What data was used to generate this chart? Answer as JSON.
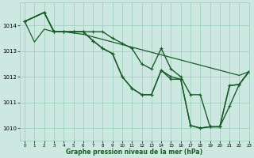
{
  "background_color": "#cce8e0",
  "plot_bg_color": "#cce8e0",
  "grid_color": "#99ccbb",
  "line_color": "#1a5c2a",
  "title": "Graphe pression niveau de la mer (hPa)",
  "ylim": [
    1009.5,
    1014.9
  ],
  "xlim": [
    -0.5,
    23
  ],
  "yticks": [
    1010,
    1011,
    1012,
    1013,
    1014
  ],
  "xticks": [
    0,
    1,
    2,
    3,
    4,
    5,
    6,
    7,
    8,
    9,
    10,
    11,
    12,
    13,
    14,
    15,
    16,
    17,
    18,
    19,
    20,
    21,
    22,
    23
  ],
  "series": [
    {
      "x": [
        0,
        1,
        2,
        3,
        4,
        5,
        6,
        7,
        8,
        9,
        10,
        11,
        12,
        13,
        14,
        15,
        16,
        17,
        18,
        19,
        20,
        21,
        22,
        23
      ],
      "y": [
        1014.15,
        1013.35,
        1013.85,
        1013.75,
        1013.75,
        1013.7,
        1013.65,
        1013.55,
        1013.45,
        1013.35,
        1013.25,
        1013.15,
        1013.05,
        1012.95,
        1012.85,
        1012.75,
        1012.65,
        1012.55,
        1012.45,
        1012.35,
        1012.25,
        1012.15,
        1012.05,
        1012.2
      ],
      "marker": null,
      "linewidth": 0.9
    },
    {
      "x": [
        0,
        2,
        3,
        4,
        5,
        6,
        7,
        8,
        9,
        10,
        11,
        12,
        13,
        14,
        15,
        16,
        17,
        18,
        19,
        20,
        21,
        22,
        23
      ],
      "y": [
        1014.15,
        1014.5,
        1013.75,
        1013.75,
        1013.75,
        1013.75,
        1013.75,
        1013.75,
        1013.5,
        1013.3,
        1013.1,
        1012.5,
        1012.3,
        1013.1,
        1012.3,
        1012.0,
        1011.3,
        1011.3,
        1010.05,
        1010.05,
        1010.85,
        1011.7,
        1012.2
      ],
      "marker": "+",
      "linewidth": 1.0
    },
    {
      "x": [
        0,
        2,
        3,
        4,
        5,
        6,
        7,
        8,
        9,
        10,
        11,
        12,
        13,
        14,
        15,
        16,
        17,
        18,
        19,
        20,
        21,
        22,
        23
      ],
      "y": [
        1014.15,
        1014.5,
        1013.75,
        1013.75,
        1013.75,
        1013.75,
        1013.4,
        1013.1,
        1012.9,
        1012.0,
        1011.55,
        1011.3,
        1011.3,
        1012.25,
        1012.0,
        1011.9,
        1010.1,
        1010.0,
        1010.05,
        1010.05,
        1011.65,
        1011.7,
        1012.2
      ],
      "marker": "+",
      "linewidth": 1.0
    },
    {
      "x": [
        0,
        2,
        3,
        4,
        5,
        6,
        7,
        8,
        9,
        10,
        11,
        12,
        13,
        14,
        15,
        16,
        17,
        18,
        19,
        20,
        21,
        22,
        23
      ],
      "y": [
        1014.15,
        1014.5,
        1013.75,
        1013.75,
        1013.75,
        1013.75,
        1013.4,
        1013.1,
        1012.9,
        1012.0,
        1011.55,
        1011.3,
        1011.3,
        1012.25,
        1011.9,
        1011.9,
        1010.1,
        1010.0,
        1010.05,
        1010.05,
        1011.65,
        1011.7,
        1012.2
      ],
      "marker": "+",
      "linewidth": 1.0
    }
  ]
}
